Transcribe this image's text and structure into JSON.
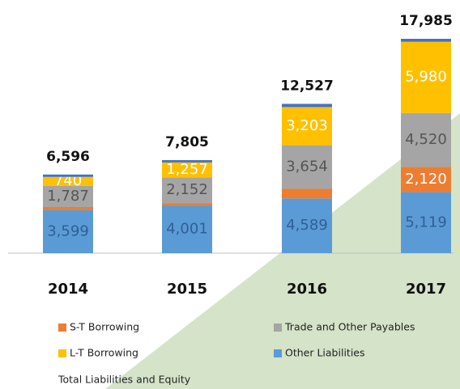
{
  "chart_data": {
    "type": "stacked-bar",
    "categories": [
      "2014",
      "2015",
      "2016",
      "2017"
    ],
    "series": [
      {
        "name": "Other Liabilities",
        "color": "#5b9bd5",
        "values": [
          3599,
          4001,
          4589,
          5119
        ],
        "value_labels": [
          "3,599",
          "4,001",
          "4,589",
          "5,119"
        ]
      },
      {
        "name": "S-T Borrowing",
        "color": "#ed7d31",
        "values": [
          270,
          200,
          810,
          2120
        ],
        "value_labels": [
          null,
          null,
          null,
          "2,120"
        ]
      },
      {
        "name": "Trade and Other Payables",
        "color": "#a5a5a5",
        "values": [
          1787,
          2152,
          3654,
          4520
        ],
        "value_labels": [
          "1,787",
          "2,152",
          "3,654",
          "4,520"
        ]
      },
      {
        "name": "L-T Borrowing",
        "color": "#ffc000",
        "values": [
          740,
          1257,
          3203,
          5980
        ],
        "value_labels": [
          "740",
          "1,257",
          "3,203",
          "5,980"
        ]
      },
      {
        "color": "#4472c4",
        "values": [
          200,
          195,
          271,
          246
        ]
      }
    ],
    "totals_title": "Total Liabilities and Equity",
    "totals": [
      6596,
      7805,
      12527,
      17985
    ],
    "totals_labels": [
      "6,596",
      "7,805",
      "12,527",
      "17,985"
    ]
  }
}
